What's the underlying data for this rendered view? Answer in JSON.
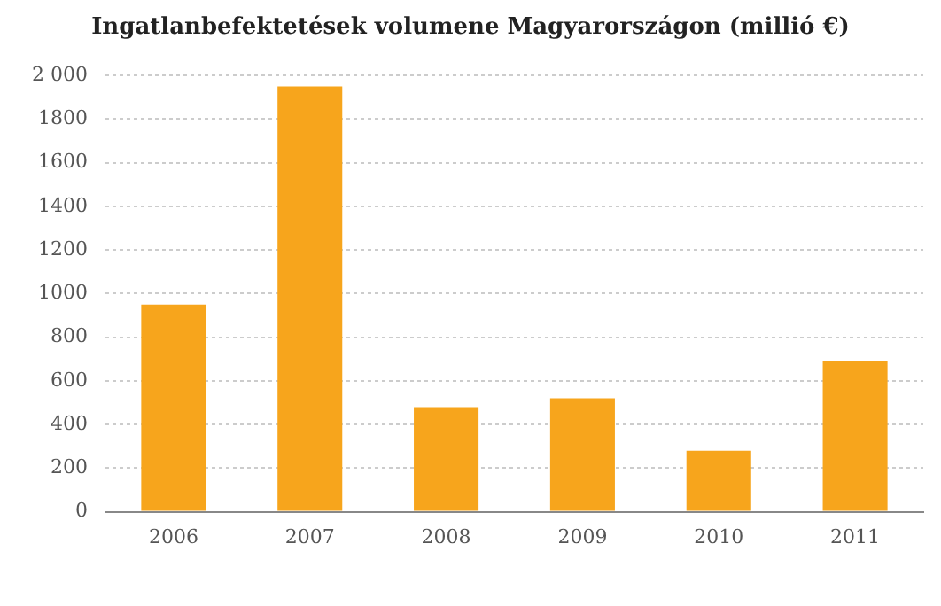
{
  "chart_data": {
    "type": "bar",
    "title": "Ingatlanbefektetések volumene Magyarországon (millió €)",
    "categories": [
      "2006",
      "2007",
      "2008",
      "2009",
      "2010",
      "2011"
    ],
    "values": [
      950,
      1950,
      480,
      520,
      280,
      690
    ],
    "color": "#f7a51c",
    "ylim": [
      0,
      2000
    ],
    "yticks": [
      0,
      200,
      400,
      600,
      800,
      1000,
      1200,
      1400,
      1600,
      1800,
      {
        "value": 2000,
        "label": "2 000"
      }
    ],
    "grid": "y",
    "legend": false
  }
}
